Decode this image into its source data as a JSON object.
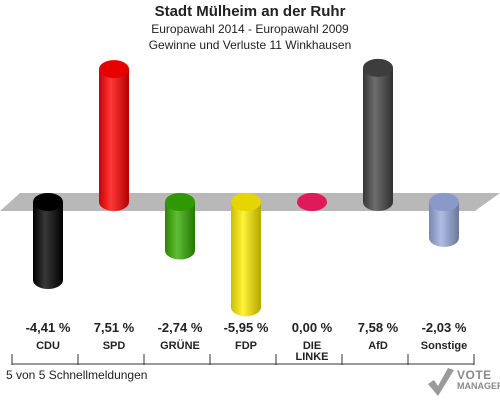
{
  "chart_data": {
    "type": "bar",
    "title": "Stadt Mülheim an der Ruhr",
    "subtitle": "Europawahl 2014 - Europawahl 2009",
    "subtitle2": "Gewinne und Verluste 11 Winkhausen",
    "categories": [
      "CDU",
      "SPD",
      "GRÜNE",
      "FDP",
      "DIE LINKE",
      "AfD",
      "Sonstige"
    ],
    "category_lines": [
      [
        "CDU"
      ],
      [
        "SPD"
      ],
      [
        "GRÜNE"
      ],
      [
        "FDP"
      ],
      [
        "DIE",
        "LINKE"
      ],
      [
        "AfD"
      ],
      [
        "Sonstige"
      ]
    ],
    "values": [
      -4.41,
      7.51,
      -2.74,
      -5.95,
      0.0,
      7.58,
      -2.03
    ],
    "value_labels": [
      "-4,41 %",
      "7,51 %",
      "-2,74 %",
      "-5,95 %",
      "0,00 %",
      "7,58 %",
      "-2,03 %"
    ],
    "colors": [
      "#000000",
      "#ff0000",
      "#33aa00",
      "#ffee00",
      "#e0195a",
      "#444444",
      "#99aadd"
    ],
    "ylim": [
      -7,
      9
    ]
  },
  "footer": "5 von 5 Schnellmeldungen",
  "logo": {
    "line1": "VOTE",
    "line2": "MANAGER"
  }
}
